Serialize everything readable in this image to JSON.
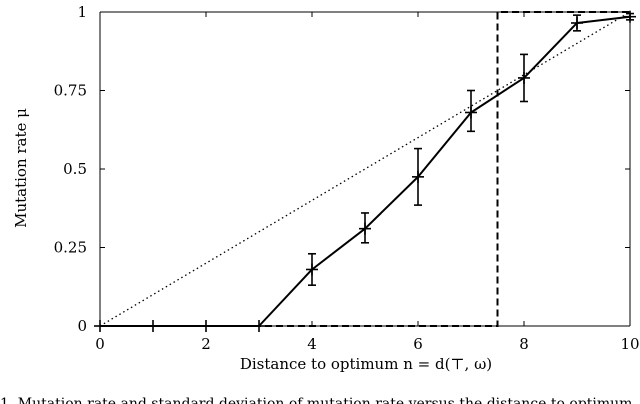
{
  "chart_data": {
    "type": "line",
    "xlabel": "Distance to optimum n = d(⊤, ω)",
    "ylabel": "Mutation rate μ",
    "xlim": [
      0,
      10
    ],
    "ylim": [
      0,
      1
    ],
    "x_ticks": [
      0,
      2,
      4,
      6,
      8,
      10
    ],
    "y_ticks": [
      0,
      0.25,
      0.5,
      0.75,
      1
    ],
    "x_tick_labels": [
      "0",
      "2",
      "4",
      "6",
      "8",
      "10"
    ],
    "y_tick_labels": [
      "0",
      "0.25",
      "0.5",
      "0.75",
      "1"
    ],
    "grid": false,
    "series": [
      {
        "style": "solid-with-error-bars",
        "color": "#000000",
        "x": [
          0,
          1,
          2,
          3,
          4,
          5,
          6,
          7,
          8,
          9,
          10
        ],
        "y": [
          0,
          0,
          0,
          0,
          0.18,
          0.31,
          0.475,
          0.68,
          0.79,
          0.965,
          0.985
        ],
        "err_low": [
          0,
          0,
          0,
          0,
          0.05,
          0.045,
          0.09,
          0.06,
          0.075,
          0.025,
          0.01
        ],
        "err_high": [
          0,
          0,
          0,
          0,
          0.05,
          0.05,
          0.09,
          0.07,
          0.075,
          0.025,
          0.01
        ]
      },
      {
        "style": "dotted",
        "color": "#000000",
        "x": [
          0,
          10
        ],
        "y": [
          0,
          1
        ]
      },
      {
        "style": "dashed",
        "color": "#000000",
        "x": [
          0,
          7.5,
          7.5,
          10
        ],
        "y": [
          0,
          0,
          1,
          1
        ]
      }
    ]
  },
  "caption_text": "1. Mutation rate and standard deviation of mutation rate versus the distance to optimum"
}
